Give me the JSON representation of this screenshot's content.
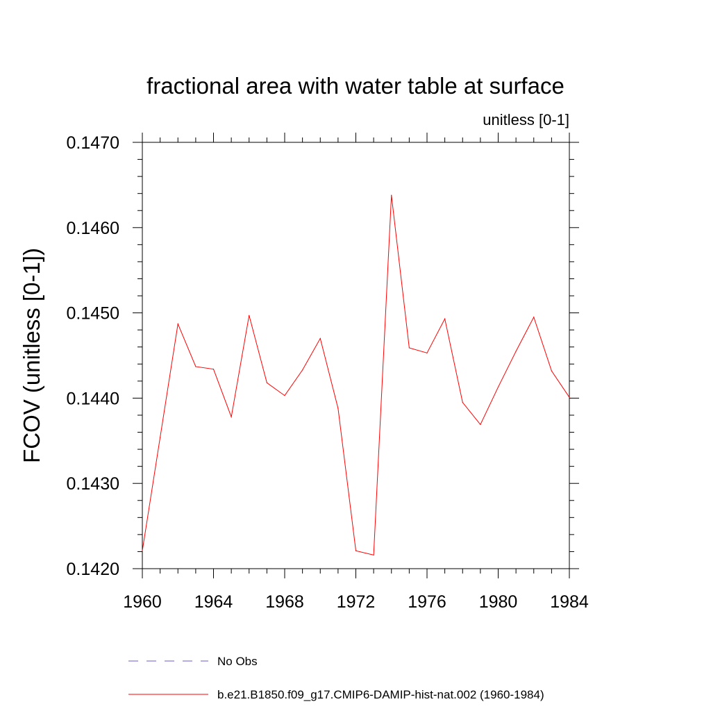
{
  "chart_data": {
    "type": "line",
    "title": "fractional area with water table at surface",
    "units_label": "unitless [0-1]",
    "ylabel": "FCOV  (unitless [0-1])",
    "xlabel": "",
    "xlim": [
      1960,
      1984
    ],
    "ylim": [
      0.142,
      0.147
    ],
    "x_ticks": [
      1960,
      1964,
      1968,
      1972,
      1976,
      1980,
      1984
    ],
    "x_tick_labels": [
      "1960",
      "1964",
      "1968",
      "1972",
      "1976",
      "1980",
      "1984"
    ],
    "y_ticks": [
      0.142,
      0.143,
      0.144,
      0.145,
      0.146,
      0.147
    ],
    "y_tick_labels": [
      "0.1420",
      "0.1430",
      "0.1440",
      "0.1450",
      "0.1460",
      "0.1470"
    ],
    "grid": false,
    "legend_position": "bottom",
    "series": [
      {
        "name": "No Obs",
        "color": "#6a5acd",
        "dashed": true,
        "x": [],
        "values": []
      },
      {
        "name": "b.e21.B1850.f09_g17.CMIP6-DAMIP-hist-nat.002 (1960-1984)",
        "color": "#ff0000",
        "dashed": false,
        "x": [
          1960,
          1961,
          1962,
          1963,
          1964,
          1965,
          1966,
          1967,
          1968,
          1969,
          1970,
          1971,
          1972,
          1973,
          1974,
          1975,
          1976,
          1977,
          1978,
          1979,
          1980,
          1981,
          1982,
          1983,
          1984
        ],
        "values": [
          0.14221,
          0.14354,
          0.14487,
          0.14437,
          0.14434,
          0.14378,
          0.14497,
          0.14418,
          0.14403,
          0.14433,
          0.1447,
          0.14388,
          0.14221,
          0.14216,
          0.14638,
          0.14459,
          0.14453,
          0.14493,
          0.14395,
          0.14369,
          0.14413,
          0.14455,
          0.14495,
          0.14432,
          0.14401
        ]
      }
    ]
  }
}
